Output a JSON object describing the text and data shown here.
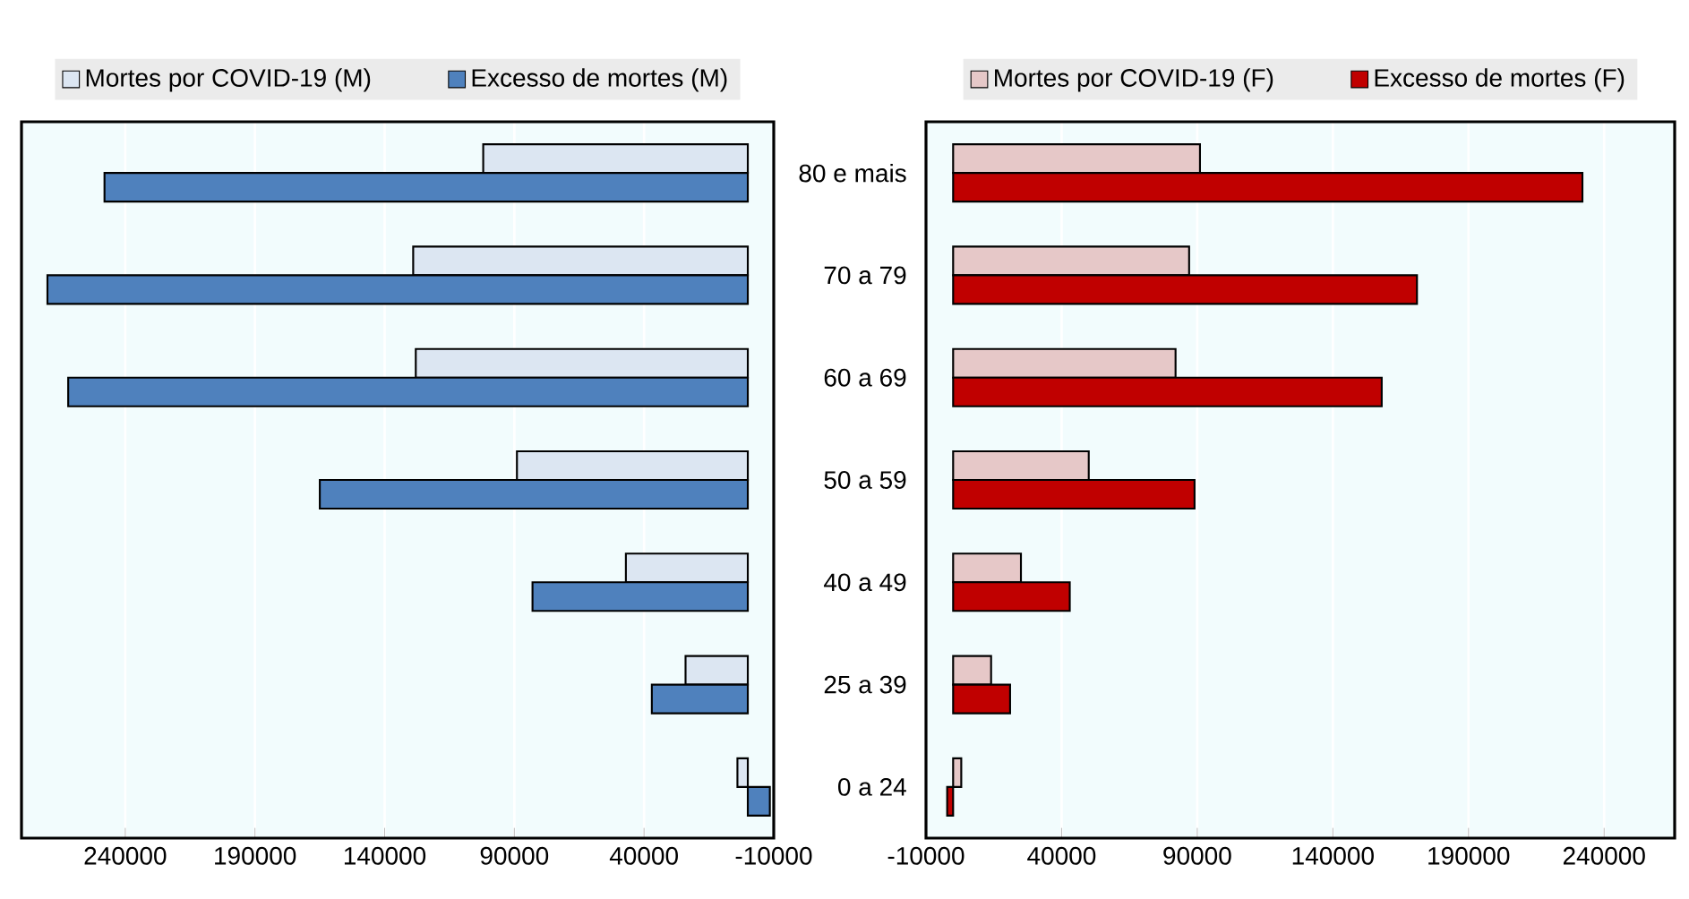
{
  "chart_data": [
    {
      "type": "bar",
      "orientation": "horizontal",
      "categories": [
        null,
        null,
        null,
        null,
        null,
        null,
        null
      ],
      "series": [
        {
          "name": "Mortes por COVID-19 (M)",
          "color": "#dce6f2",
          "values": [
            102000,
            129000,
            128000,
            89000,
            47000,
            24000,
            4000
          ]
        },
        {
          "name": "Excesso de mortes (M)",
          "color": "#4f81bd",
          "values": [
            248000,
            270000,
            262000,
            165000,
            83000,
            37000,
            -8500
          ]
        }
      ],
      "xlim": [
        280000,
        -10000
      ],
      "xticks": [
        240000,
        190000,
        140000,
        90000,
        40000,
        -10000
      ],
      "grid": "x",
      "legend": "top",
      "tick_labels": "x"
    },
    {
      "type": "bar",
      "orientation": "horizontal",
      "categories": [
        "80 e mais",
        "70 a 79",
        "60 a 69",
        "50 a 59",
        "40 a 49",
        "25 a 39",
        "0 a 24"
      ],
      "series": [
        {
          "name": "Mortes por COVID-19 (F)",
          "color": "#e6c8c8",
          "values": [
            91000,
            87000,
            82000,
            50000,
            25000,
            14000,
            3000
          ]
        },
        {
          "name": "Excesso de mortes (F)",
          "color": "#c00000",
          "values": [
            232000,
            171000,
            158000,
            89000,
            43000,
            21000,
            -2200
          ]
        }
      ],
      "xlim": [
        -10000,
        266000
      ],
      "xticks": [
        -10000,
        40000,
        90000,
        140000,
        190000,
        240000
      ],
      "grid": "x",
      "legend": "top"
    }
  ]
}
